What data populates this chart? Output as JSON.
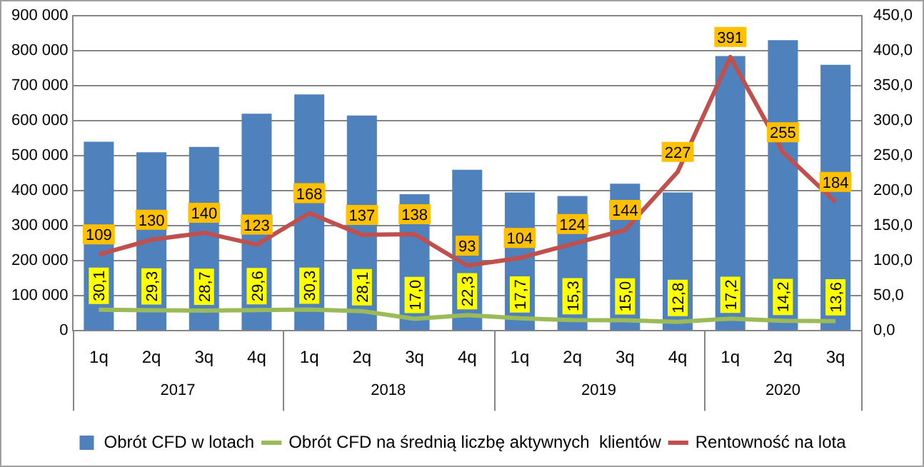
{
  "chart_data": {
    "type": "bar",
    "categories": [
      "1q",
      "2q",
      "3q",
      "4q",
      "1q",
      "2q",
      "3q",
      "4q",
      "1q",
      "2q",
      "3q",
      "4q",
      "1q",
      "2q",
      "3q"
    ],
    "series": [
      {
        "name": "Obrót CFD w lotach",
        "color": "#4f81bd",
        "values": [
          540000,
          510000,
          525000,
          620000,
          675000,
          615000,
          390000,
          460000,
          395000,
          385000,
          420000,
          395000,
          785000,
          830000,
          760000
        ]
      },
      {
        "name": "Obrót CFD na średnią liczbę aktywnych  klientów",
        "type": "line",
        "axis": "y2",
        "color": "#9bbb59",
        "values": [
          30.1,
          29.3,
          28.7,
          29.6,
          30.3,
          28.1,
          17.0,
          22.3,
          17.7,
          15.3,
          15.0,
          12.8,
          17.2,
          14.2,
          13.6
        ],
        "value_labels": [
          "30,1",
          "29,3",
          "28,7",
          "29,6",
          "30,3",
          "28,1",
          "17,0",
          "22,3",
          "17,7",
          "15,3",
          "15,0",
          "12,8",
          "17,2",
          "14,2",
          "13,6"
        ]
      },
      {
        "name": "Rentowność na lota",
        "type": "line",
        "axis": "y2",
        "color": "#c0504d",
        "values": [
          109,
          130,
          140,
          123,
          168,
          137,
          138,
          93,
          104,
          124,
          144,
          227,
          391,
          255,
          184
        ],
        "value_labels": [
          "109",
          "130",
          "140",
          "123",
          "168",
          "137",
          "138",
          "93",
          "104",
          "124",
          "144",
          "227",
          "391",
          "255",
          "184"
        ]
      }
    ],
    "ylim": [
      0,
      900000
    ],
    "yticks": [
      {
        "value": 0,
        "label": "0"
      },
      {
        "value": 100000,
        "label": "100 000"
      },
      {
        "value": 200000,
        "label": "200 000"
      },
      {
        "value": 300000,
        "label": "300 000"
      },
      {
        "value": 400000,
        "label": "400 000"
      },
      {
        "value": 500000,
        "label": "500 000"
      },
      {
        "value": 600000,
        "label": "600 000"
      },
      {
        "value": 700000,
        "label": "700 000"
      },
      {
        "value": 800000,
        "label": "800 000"
      },
      {
        "value": 900000,
        "label": "900 000"
      }
    ],
    "y2lim": [
      0,
      450
    ],
    "y2ticks": [
      {
        "value": 0,
        "label": "0,0"
      },
      {
        "value": 50,
        "label": "50,0"
      },
      {
        "value": 100,
        "label": "100,0"
      },
      {
        "value": 150,
        "label": "150,0"
      },
      {
        "value": 200,
        "label": "200,0"
      },
      {
        "value": 250,
        "label": "250,0"
      },
      {
        "value": 300,
        "label": "300,0"
      },
      {
        "value": 350,
        "label": "350,0"
      },
      {
        "value": 400,
        "label": "400,0"
      },
      {
        "value": 450,
        "label": "450,0"
      }
    ],
    "annotations": [
      "2017",
      "2018",
      "2019",
      "2020"
    ],
    "grid": "y",
    "legend": "bottom",
    "marker": "none",
    "line_style": "solid"
  }
}
